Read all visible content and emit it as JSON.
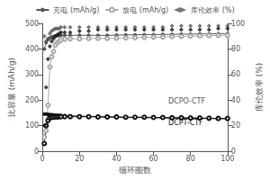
{
  "chart_data": {
    "type": "line",
    "xlabel": "循环圈数",
    "ylabel": "比容量 (mAh/g)",
    "y2label": "库伦效率 (%)",
    "xlim": [
      0,
      100
    ],
    "ylim": [
      0,
      500
    ],
    "y2lim": [
      0,
      100
    ],
    "xticks": [
      0,
      20,
      40,
      60,
      80,
      100
    ],
    "yticks": [
      0,
      100,
      200,
      300,
      400,
      500
    ],
    "y2ticks": [
      0,
      20,
      40,
      60,
      80,
      100
    ],
    "grid": false,
    "legend": "top",
    "x": [
      1,
      2,
      3,
      4,
      5,
      6,
      7,
      8,
      9,
      10,
      12,
      15,
      20,
      25,
      30,
      35,
      40,
      45,
      50,
      55,
      60,
      65,
      70,
      75,
      80,
      85,
      90,
      95,
      100
    ],
    "series": [
      {
        "name": "充电 (mAh/g)",
        "type": "line",
        "marker": "circle",
        "color": "#555555",
        "axis": "y",
        "values": [
          400,
          425,
          437,
          443,
          447,
          449,
          451,
          452,
          452,
          453,
          453,
          453,
          453,
          453,
          453,
          453,
          454,
          455,
          455,
          456,
          456,
          457,
          457,
          458,
          458,
          459,
          459,
          460,
          460
        ]
      },
      {
        "name": "放电 (mAh/g)",
        "type": "line",
        "marker": "open_circle",
        "color": "#aaaaaa",
        "axis": "y",
        "values": [
          55,
          80,
          180,
          330,
          370,
          390,
          415,
          425,
          430,
          435,
          438,
          440,
          440,
          441,
          441,
          441,
          442,
          443,
          444,
          445,
          446,
          447,
          448,
          449,
          450,
          451,
          452,
          453,
          453
        ]
      },
      {
        "name": "充电 (mAh/g)",
        "type": "line",
        "marker": "circle",
        "color": "#111111",
        "axis": "y",
        "values": [
          145,
          145,
          144,
          143,
          143,
          142,
          141,
          141,
          140,
          140,
          139,
          138,
          137,
          136,
          135,
          134,
          133,
          132,
          132,
          131,
          131,
          130,
          130,
          129,
          129,
          128,
          128,
          127,
          127
        ]
      },
      {
        "name": "放电 (mAh/g)",
        "type": "line",
        "marker": "open_circle",
        "color": "#111111",
        "axis": "y",
        "values": [
          30,
          100,
          120,
          130,
          132,
          133,
          134,
          134,
          135,
          135,
          135,
          135,
          135,
          135,
          134,
          134,
          134,
          133,
          133,
          133,
          132,
          132,
          131,
          131,
          130,
          130,
          129,
          128,
          128
        ]
      },
      {
        "name": "库伦效率 (%)",
        "type": "scatter",
        "marker": "diamond",
        "color": "#555555",
        "axis": "y2",
        "values": [
          90,
          86,
          88,
          92,
          94,
          95,
          96,
          96,
          96,
          97,
          97,
          97,
          97,
          97,
          97,
          97,
          97,
          97,
          97,
          97,
          97,
          97,
          98,
          98,
          98,
          98,
          98,
          98,
          98
        ]
      },
      {
        "name": "库伦效率 (%)",
        "type": "scatter",
        "marker": "diamond",
        "color": "#111111",
        "axis": "y2",
        "values": [
          20,
          50,
          72,
          82,
          86,
          88,
          90,
          91,
          92,
          93,
          93,
          93,
          94,
          94,
          95,
          95,
          95,
          95,
          95,
          95,
          95,
          95,
          95,
          95,
          95,
          95,
          95,
          96,
          96
        ]
      }
    ],
    "annotations": [
      {
        "text": "DCPO-CTF",
        "x": 68,
        "y": 195,
        "color": "#555555"
      },
      {
        "text": "DCPT-CTF",
        "x": 68,
        "y": 112,
        "color": "#111111"
      }
    ]
  }
}
